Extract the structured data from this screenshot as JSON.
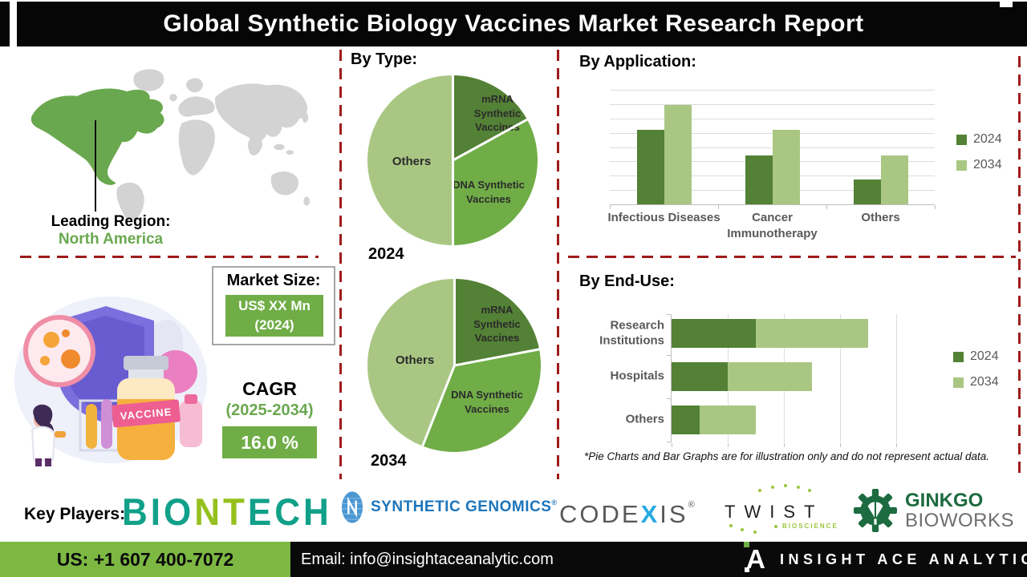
{
  "title": "Global Synthetic Biology Vaccines Market Research Report",
  "leading_region": {
    "label": "Leading Region:",
    "value": "North America"
  },
  "market_size": {
    "heading": "Market Size:",
    "value_line1": "US$ XX Mn",
    "value_line2": "(2024)"
  },
  "cagr": {
    "heading": "CAGR",
    "period": "(2025-2034)",
    "value": "16.0 %"
  },
  "illustration": {
    "bottle_label": "VACCINE"
  },
  "sections": {
    "by_type": "By Type:",
    "by_application": "By Application:",
    "by_end_use": "By End-Use:"
  },
  "footnote": "*Pie Charts and Bar Graphs are for illustration only and do not represent actual data.",
  "key_players": {
    "label": "Key Players:",
    "biontech": {
      "part1": "BIO",
      "part2": "NT",
      "part3": "ECH",
      "color_main": "#11a089",
      "color_accent": "#95c11f"
    },
    "synthetic_genomics": {
      "name": "SYNTHETIC GENOMICS",
      "reg": "®"
    },
    "codexis": {
      "part1": "CODE",
      "x": "X",
      "part2": "IS",
      "reg": "®"
    },
    "twist": {
      "name": "TWIST",
      "sub": "BIOSCIENCE"
    },
    "ginkgo": {
      "line1": "GINKGO",
      "line2": "BIOWORKS"
    }
  },
  "footer": {
    "phone": "US: +1 607 400-7072",
    "email": "Email: info@insightaceanalytic.com",
    "brand": "INSIGHT ACE ANALYTIC"
  },
  "colors": {
    "series_2024_green": "#538135",
    "series_2034_light_green": "#a9c783",
    "pie_mid_green": "#70ad47",
    "dashed_divider_red": "#9e1b1b",
    "footer_green": "#7db843",
    "map_highlight_green": "#6aa84f",
    "chart_label_grey": "#595959"
  },
  "chart_data": [
    {
      "type": "pie",
      "title": "2024",
      "labels": [
        "mRNA Synthetic Vaccines",
        "DNA Synthetic Vaccines",
        "Others"
      ],
      "values": [
        17,
        33,
        50
      ],
      "unit": "percent-illustrative",
      "colors": [
        "#538135",
        "#70ad47",
        "#a9c783"
      ],
      "note": "illustrative only per footnote"
    },
    {
      "type": "pie",
      "title": "2034",
      "labels": [
        "mRNA Synthetic Vaccines",
        "DNA Synthetic Vaccines",
        "Others"
      ],
      "values": [
        22,
        34,
        44
      ],
      "unit": "percent-illustrative",
      "colors": [
        "#538135",
        "#70ad47",
        "#a9c783"
      ],
      "note": "illustrative only per footnote"
    },
    {
      "type": "bar",
      "title": "By Application:",
      "categories": [
        "Infectious Diseases",
        "Cancer Immunotherapy",
        "Others"
      ],
      "series": [
        {
          "name": "2024",
          "color": "#538135",
          "values": [
            6.5,
            4.3,
            2.2
          ]
        },
        {
          "name": "2034",
          "color": "#a9c783",
          "values": [
            8.7,
            6.5,
            4.3
          ]
        }
      ],
      "ylim": [
        0,
        10
      ],
      "grid": true,
      "legend_position": "right",
      "note": "no numeric axis labels shown; values estimated from gridlines, illustrative only"
    },
    {
      "type": "bar",
      "orientation": "horizontal",
      "stacked": true,
      "title": "By End-Use:",
      "categories": [
        "Research Institutions",
        "Hospitals",
        "Others"
      ],
      "series": [
        {
          "name": "2024",
          "color": "#538135",
          "values": [
            3,
            2,
            1
          ]
        },
        {
          "name": "2034",
          "color": "#a9c783",
          "values": [
            4,
            3,
            2
          ]
        }
      ],
      "xlim": [
        0,
        8
      ],
      "grid": true,
      "legend_position": "right",
      "note": "no numeric axis labels shown; values estimated from gridlines, illustrative only"
    }
  ]
}
